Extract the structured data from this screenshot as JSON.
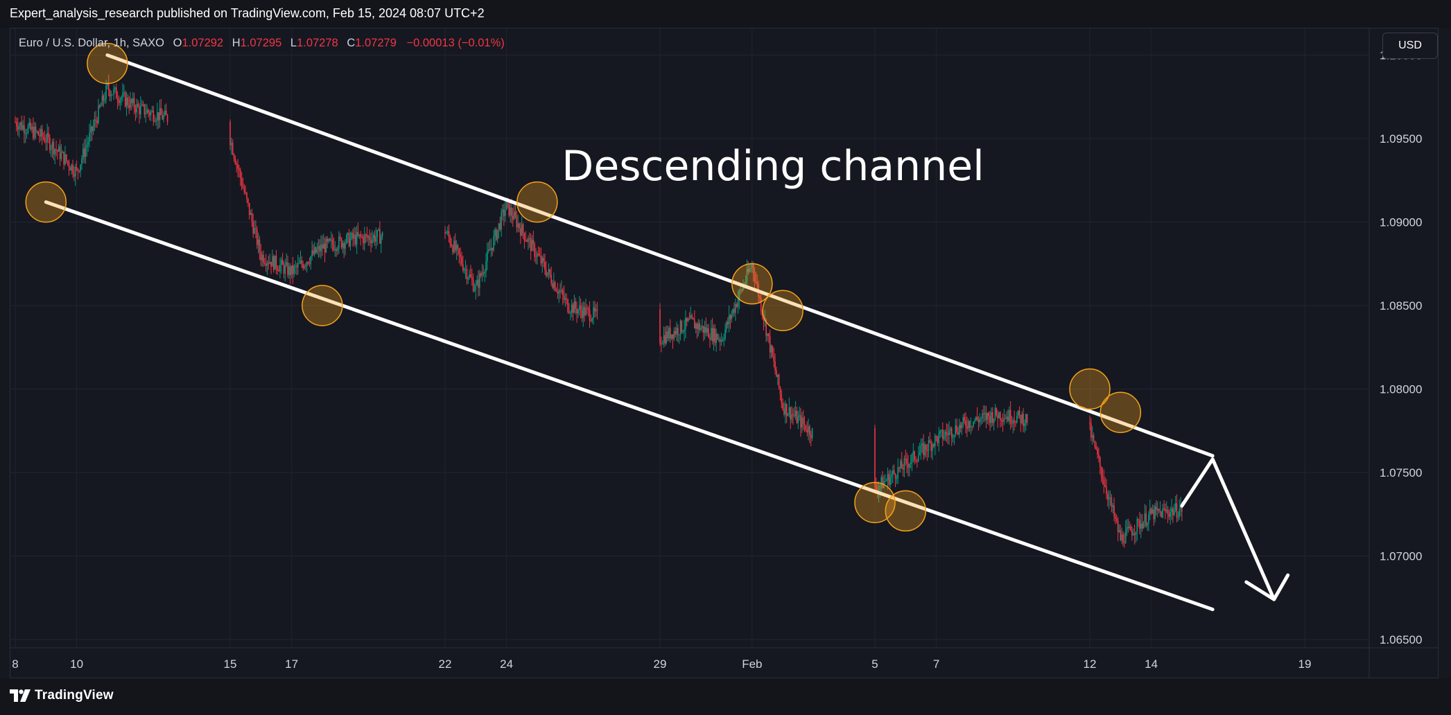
{
  "header": {
    "published_text": "Expert_analysis_research published on TradingView.com, Feb 15, 2024 08:07 UTC+2"
  },
  "legend": {
    "symbol": "Euro / U.S. Dollar, 1h, SAXO",
    "open_label": "O",
    "open_value": "1.07292",
    "high_label": "H",
    "high_value": "1.07295",
    "low_label": "L",
    "low_value": "1.07278",
    "close_label": "C",
    "close_value": "1.07279",
    "change": "−0.00013 (−0.01%)"
  },
  "currency_button": "USD",
  "footer": {
    "brand": "TradingView"
  },
  "colors": {
    "background": "#151821",
    "bullish": "#089981",
    "bearish": "#f23645",
    "annotation": "#ffffff",
    "marker_fill": "#f7a21b",
    "marker_stroke": "#f7a21b"
  },
  "chart_data": {
    "type": "candlestick",
    "symbol": "EURUSD",
    "timeframe": "1h",
    "annotation_text": "Descending channel",
    "y_axis": {
      "ticks": [
        "1.10000",
        "1.09500",
        "1.09000",
        "1.08500",
        "1.08000",
        "1.07500",
        "1.07000",
        "1.06500"
      ],
      "tick_values": [
        1.1,
        1.095,
        1.09,
        1.085,
        1.08,
        1.075,
        1.07,
        1.065
      ],
      "range": [
        1.0645,
        1.1016
      ]
    },
    "x_axis": {
      "tick_labels": [
        "8",
        "10",
        "15",
        "17",
        "22",
        "24",
        "29",
        "Feb",
        "5",
        "7",
        "12",
        "14",
        "19"
      ],
      "tick_dates": [
        "2024-01-08",
        "2024-01-10",
        "2024-01-15",
        "2024-01-17",
        "2024-01-22",
        "2024-01-24",
        "2024-01-29",
        "2024-02-01",
        "2024-02-05",
        "2024-02-07",
        "2024-02-12",
        "2024-02-14",
        "2024-02-19"
      ]
    },
    "price_path": {
      "description_points": [
        {
          "date": "2024-01-08",
          "price": 1.096
        },
        {
          "date": "2024-01-09",
          "price": 1.095
        },
        {
          "date": "2024-01-10",
          "price": 1.093
        },
        {
          "date": "2024-01-11",
          "price": 1.098
        },
        {
          "date": "2024-01-12",
          "price": 1.0968
        },
        {
          "date": "2024-01-15",
          "price": 1.095
        },
        {
          "date": "2024-01-16",
          "price": 1.088
        },
        {
          "date": "2024-01-17",
          "price": 1.087
        },
        {
          "date": "2024-01-18",
          "price": 1.0885
        },
        {
          "date": "2024-01-19",
          "price": 1.089
        },
        {
          "date": "2024-01-22",
          "price": 1.0895
        },
        {
          "date": "2024-01-23",
          "price": 1.086
        },
        {
          "date": "2024-01-24",
          "price": 1.091
        },
        {
          "date": "2024-01-25",
          "price": 1.088
        },
        {
          "date": "2024-01-26",
          "price": 1.085
        },
        {
          "date": "2024-01-29",
          "price": 1.083
        },
        {
          "date": "2024-01-30",
          "price": 1.084
        },
        {
          "date": "2024-01-31",
          "price": 1.083
        },
        {
          "date": "2024-02-01",
          "price": 1.0875
        },
        {
          "date": "2024-02-02",
          "price": 1.079
        },
        {
          "date": "2024-02-05",
          "price": 1.074
        },
        {
          "date": "2024-02-06",
          "price": 1.0755
        },
        {
          "date": "2024-02-07",
          "price": 1.077
        },
        {
          "date": "2024-02-08",
          "price": 1.078
        },
        {
          "date": "2024-02-09",
          "price": 1.0785
        },
        {
          "date": "2024-02-12",
          "price": 1.0775
        },
        {
          "date": "2024-02-13",
          "price": 1.071
        },
        {
          "date": "2024-02-14",
          "price": 1.0725
        },
        {
          "date": "2024-02-15",
          "price": 1.0728
        }
      ],
      "last_price": 1.07279
    },
    "channel": {
      "upper": {
        "from": {
          "date": "2024-01-11",
          "price": 1.1
        },
        "to": {
          "date": "2024-02-16",
          "price": 1.076
        }
      },
      "lower": {
        "from": {
          "date": "2024-01-09",
          "price": 1.0912
        },
        "to": {
          "date": "2024-02-16",
          "price": 1.0668
        }
      }
    },
    "touch_points": [
      {
        "date": "2024-01-09",
        "price": 1.0912
      },
      {
        "date": "2024-01-11",
        "price": 1.0995
      },
      {
        "date": "2024-01-18",
        "price": 1.085
      },
      {
        "date": "2024-01-25",
        "price": 1.0912
      },
      {
        "date": "2024-02-01",
        "price": 1.0863
      },
      {
        "date": "2024-02-02",
        "price": 1.0847
      },
      {
        "date": "2024-02-05",
        "price": 1.0732
      },
      {
        "date": "2024-02-06",
        "price": 1.0727
      },
      {
        "date": "2024-02-12",
        "price": 1.08
      },
      {
        "date": "2024-02-13",
        "price": 1.0786
      }
    ],
    "projection": [
      {
        "date": "2024-02-15",
        "price": 1.073
      },
      {
        "date": "2024-02-16",
        "price": 1.0758
      },
      {
        "date": "2024-02-18",
        "price": 1.0674
      }
    ],
    "grid": true
  }
}
